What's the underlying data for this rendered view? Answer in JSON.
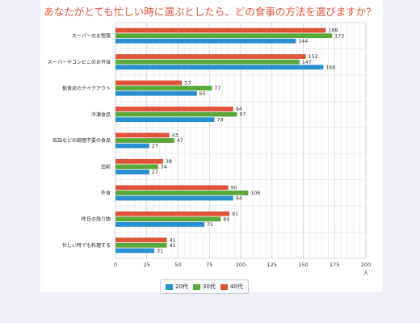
{
  "page": {
    "title": "あなたがとても忙しい時に選ぶとしたら、どの食事の方法を選びますか？"
  },
  "chart_data": {
    "type": "bar",
    "orientation": "horizontal",
    "title": "あなたがとても忙しい時に選ぶとしたら、どの食事の方法を選びますか？",
    "xlabel": "人",
    "ylabel": "",
    "xlim": [
      0,
      200
    ],
    "ticks": [
      "0",
      "25",
      "50",
      "75",
      "100",
      "125",
      "150",
      "175",
      "200"
    ],
    "grid": true,
    "legend_position": "bottom-center",
    "categories": [
      "スーパーのお惣菜",
      "スーパーやコンビニのお弁当",
      "飲食店のテイクアウト",
      "冷凍食品",
      "缶詰などの調理不要の食品",
      "出前",
      "外食",
      "昨日の残り物",
      "忙しい時でも料理する"
    ],
    "series": [
      {
        "name": "40代",
        "color": "#e0533a",
        "values": [
          168,
          152,
          53,
          94,
          43,
          38,
          90,
          91,
          41
        ]
      },
      {
        "name": "30代",
        "color": "#5aa83a",
        "values": [
          173,
          147,
          77,
          97,
          47,
          34,
          106,
          84,
          41
        ]
      },
      {
        "name": "20代",
        "color": "#2a8fcf",
        "values": [
          144,
          166,
          65,
          79,
          27,
          27,
          94,
          71,
          31
        ]
      }
    ],
    "legend_order": [
      "20代",
      "30代",
      "40代"
    ]
  }
}
